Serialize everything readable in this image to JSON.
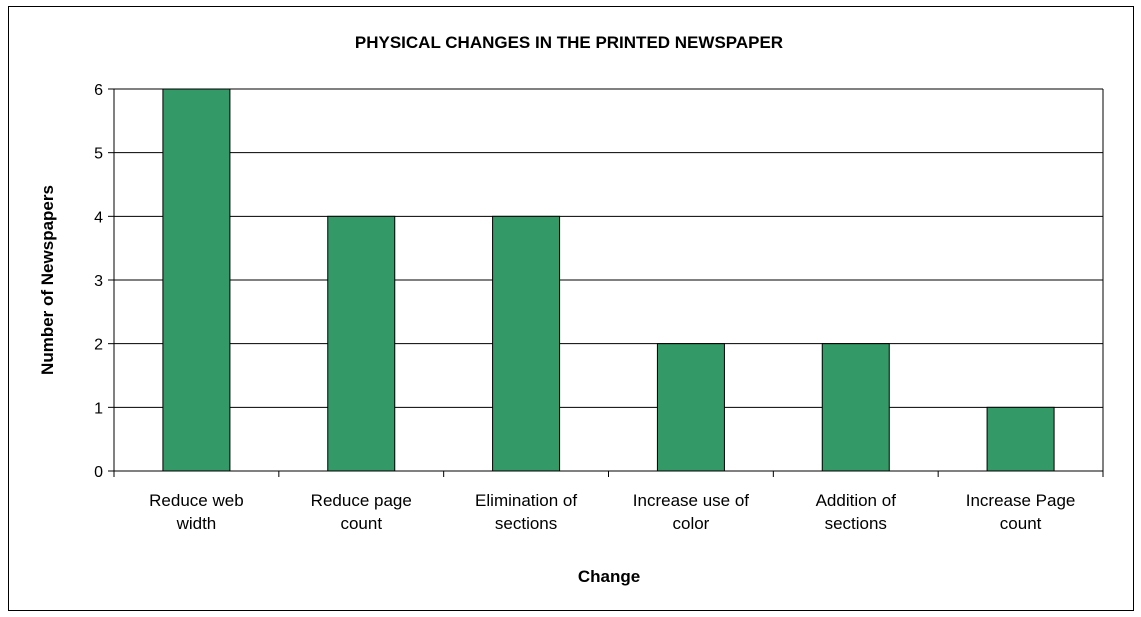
{
  "chart_data": {
    "type": "bar",
    "title": "PHYSICAL CHANGES IN THE PRINTED NEWSPAPER",
    "xlabel": "Change",
    "ylabel": "Number of Newspapers",
    "categories": [
      [
        "Reduce web",
        "width"
      ],
      [
        "Reduce page",
        "count"
      ],
      [
        "Elimination of",
        "sections"
      ],
      [
        "Increase use of",
        "color"
      ],
      [
        "Addition of",
        "sections"
      ],
      [
        "Increase Page",
        "count"
      ]
    ],
    "values": [
      6,
      4,
      4,
      2,
      2,
      1
    ],
    "ylim": [
      0,
      6
    ],
    "yticks": [
      "0",
      "1",
      "2",
      "3",
      "4",
      "5",
      "6"
    ],
    "grid": true,
    "legend": "none",
    "bar_color": "#339966"
  }
}
